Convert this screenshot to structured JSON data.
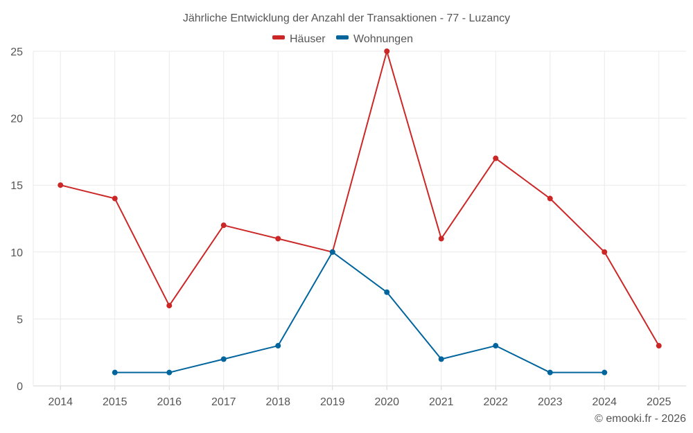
{
  "chart_data": {
    "type": "line",
    "title": "Jährliche Entwicklung der Anzahl der Transaktionen - 77 - Luzancy",
    "categories": [
      "2014",
      "2015",
      "2016",
      "2017",
      "2018",
      "2019",
      "2020",
      "2021",
      "2022",
      "2023",
      "2024",
      "2025"
    ],
    "series": [
      {
        "name": "Häuser",
        "color": "#cc2727",
        "values": [
          15,
          14,
          6,
          12,
          11,
          10,
          25,
          11,
          17,
          14,
          10,
          3
        ]
      },
      {
        "name": "Wohnungen",
        "color": "#00649d",
        "values": [
          null,
          1,
          1,
          2,
          3,
          10,
          7,
          2,
          3,
          1,
          1,
          null
        ]
      }
    ],
    "ylim": [
      0,
      25
    ],
    "yticks": [
      0,
      5,
      10,
      15,
      20,
      25
    ],
    "xlabel": "",
    "ylabel": "",
    "grid": true,
    "legend": "top-center",
    "credit": "© emooki.fr - 2026"
  }
}
